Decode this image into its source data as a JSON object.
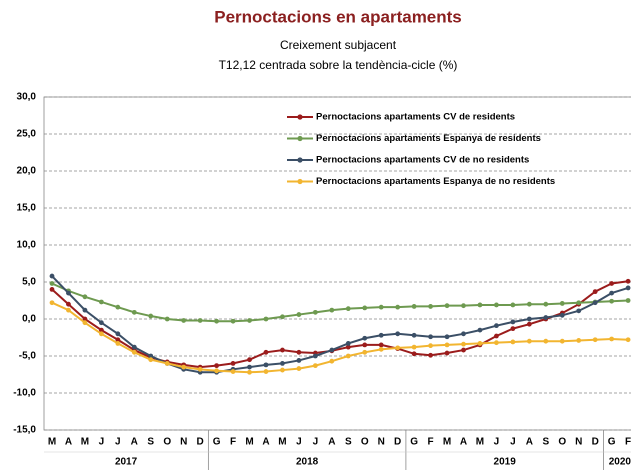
{
  "chart_data": {
    "type": "line",
    "title": "Pernoctacions en apartaments",
    "subtitle": [
      "Creixement  subjacent",
      "T12,12 centrada sobre la tendència-cicle (%)"
    ],
    "categories": [
      "M",
      "A",
      "M",
      "J",
      "J",
      "A",
      "S",
      "O",
      "N",
      "D",
      "G",
      "F",
      "M",
      "A",
      "M",
      "J",
      "J",
      "A",
      "S",
      "O",
      "N",
      "D",
      "G",
      "F",
      "M",
      "A",
      "M",
      "J",
      "J",
      "A",
      "S",
      "O",
      "N",
      "D",
      "G",
      "F"
    ],
    "years": [
      "2017",
      "2018",
      "2019",
      "2020"
    ],
    "series": [
      {
        "name": "Pernoctacions apartaments CV de residents",
        "color": "#9b1c1c",
        "values": [
          4.0,
          2.0,
          0.0,
          -1.5,
          -2.8,
          -4.2,
          -5.2,
          -5.8,
          -6.2,
          -6.5,
          -6.3,
          -6.0,
          -5.5,
          -4.5,
          -4.2,
          -4.5,
          -4.6,
          -4.3,
          -3.8,
          -3.5,
          -3.5,
          -4.0,
          -4.7,
          -4.9,
          -4.6,
          -4.2,
          -3.5,
          -2.3,
          -1.3,
          -0.7,
          0.0,
          0.8,
          2.0,
          3.7,
          4.8,
          5.1
        ]
      },
      {
        "name": "Pernoctacions apartaments Espanya de residents",
        "color": "#6e9a50",
        "values": [
          4.8,
          3.8,
          3.0,
          2.3,
          1.6,
          0.9,
          0.4,
          0.0,
          -0.2,
          -0.2,
          -0.3,
          -0.3,
          -0.2,
          0.0,
          0.3,
          0.6,
          0.9,
          1.2,
          1.4,
          1.5,
          1.6,
          1.6,
          1.7,
          1.7,
          1.8,
          1.8,
          1.9,
          1.9,
          1.9,
          2.0,
          2.0,
          2.1,
          2.2,
          2.3,
          2.4,
          2.5
        ]
      },
      {
        "name": "Pernoctacions apartaments CV de no residents",
        "color": "#3b4f66",
        "values": [
          5.8,
          3.5,
          1.2,
          -0.5,
          -2.0,
          -3.8,
          -5.0,
          -6.0,
          -6.8,
          -7.2,
          -7.2,
          -6.8,
          -6.5,
          -6.2,
          -6.0,
          -5.6,
          -5.0,
          -4.2,
          -3.3,
          -2.6,
          -2.2,
          -2.0,
          -2.2,
          -2.4,
          -2.4,
          -2.0,
          -1.5,
          -0.9,
          -0.4,
          0.0,
          0.2,
          0.5,
          1.1,
          2.2,
          3.5,
          4.2
        ]
      },
      {
        "name": "Pernoctacions apartaments Espanya de no residents",
        "color": "#f2b530",
        "values": [
          2.2,
          1.2,
          -0.5,
          -2.0,
          -3.3,
          -4.5,
          -5.5,
          -6.0,
          -6.5,
          -6.8,
          -7.0,
          -7.1,
          -7.2,
          -7.1,
          -6.9,
          -6.7,
          -6.3,
          -5.7,
          -5.0,
          -4.5,
          -4.1,
          -3.9,
          -3.8,
          -3.6,
          -3.5,
          -3.4,
          -3.3,
          -3.2,
          -3.1,
          -3.0,
          -3.0,
          -3.0,
          -2.9,
          -2.8,
          -2.7,
          -2.8
        ]
      }
    ],
    "ylim": [
      -15,
      30
    ],
    "yticks": [
      {
        "value": -15,
        "label": "-15,0"
      },
      {
        "value": -10,
        "label": "-10,0"
      },
      {
        "value": -5,
        "label": "-5,0"
      },
      {
        "value": 0,
        "label": "0,0"
      },
      {
        "value": 5,
        "label": "5,0"
      },
      {
        "value": 10,
        "label": "10,0"
      },
      {
        "value": 15,
        "label": "15,0"
      },
      {
        "value": 20,
        "label": "20,0"
      },
      {
        "value": 25,
        "label": "25,0"
      },
      {
        "value": 30,
        "label": "30,0"
      }
    ],
    "grid": true,
    "legend": "upper right"
  }
}
